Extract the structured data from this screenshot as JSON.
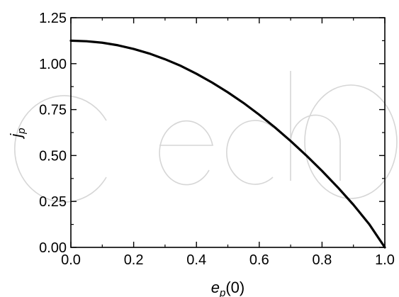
{
  "chart_data": {
    "type": "line",
    "title": "",
    "xlabel": {
      "base": "e",
      "sub": "p",
      "rest": "(0)"
    },
    "ylabel": {
      "base": "j",
      "sub": "p"
    },
    "xlim": [
      0.0,
      1.0
    ],
    "ylim": [
      0.0,
      1.25
    ],
    "xticks": [
      "0.0",
      "0.2",
      "0.4",
      "0.6",
      "0.8",
      "1.0"
    ],
    "yticks": [
      "0.00",
      "0.25",
      "0.50",
      "0.75",
      "1.00",
      "1.25"
    ],
    "grid": false,
    "legend": "none",
    "series": [
      {
        "color": "#000000",
        "x": [
          0.0,
          0.05,
          0.1,
          0.15,
          0.2,
          0.25,
          0.3,
          0.35,
          0.4,
          0.45,
          0.5,
          0.55,
          0.6,
          0.65,
          0.7,
          0.75,
          0.8,
          0.85,
          0.9,
          0.95,
          1.0
        ],
        "y": [
          1.125,
          1.122,
          1.114,
          1.1,
          1.08,
          1.055,
          1.024,
          0.988,
          0.945,
          0.897,
          0.844,
          0.786,
          0.722,
          0.653,
          0.579,
          0.5,
          0.416,
          0.327,
          0.232,
          0.127,
          0.0
        ]
      }
    ]
  }
}
